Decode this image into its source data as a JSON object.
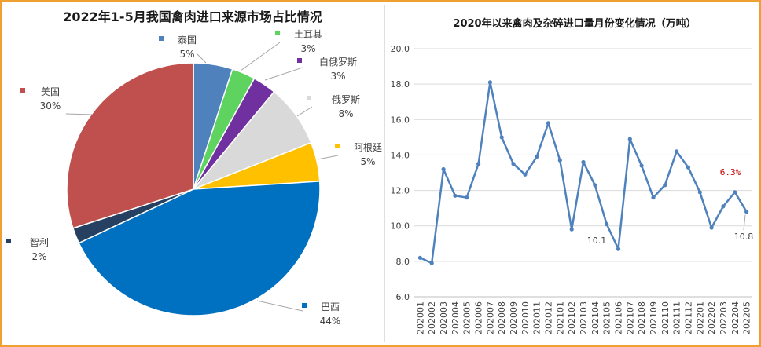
{
  "chart_data": [
    {
      "type": "pie",
      "title": "2022年1-5月我国禽肉进口来源市场占比情况",
      "slices": [
        {
          "label": "泰国",
          "pct_label": "5%",
          "value": 5,
          "color": "#4f81bd"
        },
        {
          "label": "土耳其",
          "pct_label": "3%",
          "value": 3,
          "color": "#5fd35f"
        },
        {
          "label": "白俄罗斯",
          "pct_label": "3%",
          "value": 3,
          "color": "#7030a0"
        },
        {
          "label": "俄罗斯",
          "pct_label": "8%",
          "value": 8,
          "color": "#d9d9d9"
        },
        {
          "label": "阿根廷",
          "pct_label": "5%",
          "value": 5,
          "color": "#ffc000"
        },
        {
          "label": "巴西",
          "pct_label": "44%",
          "value": 44,
          "color": "#0070c0"
        },
        {
          "label": "智利",
          "pct_label": "2%",
          "value": 2,
          "color": "#254061"
        },
        {
          "label": "美国",
          "pct_label": "30%",
          "value": 30,
          "color": "#c0504d"
        }
      ],
      "legend": "callouts"
    },
    {
      "type": "line",
      "title": "2020年以来禽肉及杂碎进口量月份变化情况（万吨）",
      "x": [
        "202001",
        "202002",
        "202003",
        "202004",
        "202005",
        "202006",
        "202007",
        "202008",
        "202009",
        "202010",
        "202011",
        "202012",
        "202101",
        "202102",
        "202103",
        "202104",
        "202105",
        "202106",
        "202107",
        "202108",
        "202109",
        "202110",
        "202111",
        "202112",
        "202201",
        "202202",
        "202203",
        "202204",
        "202205"
      ],
      "y": [
        8.2,
        7.9,
        13.2,
        11.7,
        11.6,
        13.5,
        18.1,
        15.0,
        13.5,
        12.9,
        13.9,
        15.8,
        13.7,
        9.8,
        13.6,
        12.3,
        10.1,
        8.7,
        14.9,
        13.4,
        11.6,
        12.3,
        14.2,
        13.3,
        11.9,
        9.9,
        11.1,
        11.9,
        10.8
      ],
      "color": "#4f81bd",
      "ylim": [
        6.0,
        20.0
      ],
      "yticks": [
        "6.0",
        "8.0",
        "10.0",
        "12.0",
        "14.0",
        "16.0",
        "18.0",
        "20.0"
      ],
      "grid": true,
      "annotations": [
        {
          "text": "10.1",
          "style": "normal"
        },
        {
          "text": "6.3%",
          "style": "red"
        },
        {
          "text": "10.8",
          "style": "normal"
        }
      ]
    }
  ]
}
